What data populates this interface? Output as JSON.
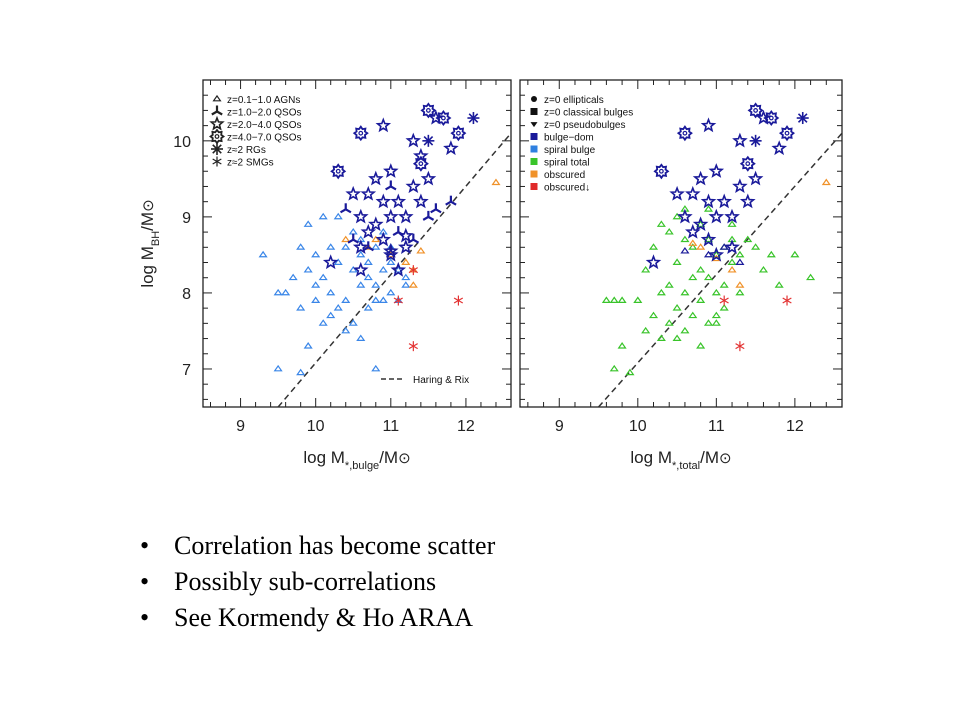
{
  "bullets": [
    "Correlation has become scatter",
    "Possibly sub-correlations",
    "See Kormendy & Ho ARAA"
  ],
  "chart_data": [
    {
      "type": "scatter",
      "xlabel": {
        "pre": "log M",
        "sub": "*,bulge",
        "post": "/M",
        "sun": "⊙"
      },
      "ylabel": {
        "pre": "log M",
        "sub": "BH",
        "post": "/M",
        "sun": "⊙"
      },
      "xlim": [
        8.5,
        12.6
      ],
      "ylim": [
        6.5,
        10.8
      ],
      "xticks": [
        "9",
        "10",
        "11",
        "12"
      ],
      "yticks": [
        "7",
        "8",
        "9",
        "10"
      ],
      "legend_position": "top-left",
      "legend": [
        {
          "label": "z=0.1−1.0 AGNs",
          "marker": "triangle-open",
          "color": "#222222"
        },
        {
          "label": "z=1.0−2.0 QSOs",
          "marker": "tri-star",
          "color": "#222222"
        },
        {
          "label": "z=2.0−4.0 QSOs",
          "marker": "star-open",
          "color": "#222222"
        },
        {
          "label": "z=4.0−7.0 QSOs",
          "marker": "gear-open",
          "color": "#222222"
        },
        {
          "label": "z≈2 RGs",
          "marker": "asterisk",
          "color": "#222222"
        },
        {
          "label": "z≈2 SMGs",
          "marker": "star-thin",
          "color": "#222222"
        }
      ],
      "line_label": "Haring & Rix",
      "reference_line": {
        "x": [
          9.5,
          12.6
        ],
        "y": [
          6.5,
          10.1
        ]
      },
      "series": [
        {
          "marker": "triangle-open",
          "color": "#3a86e8",
          "x": [
            9.3,
            9.5,
            9.6,
            9.7,
            9.8,
            9.9,
            9.9,
            10.0,
            10.0,
            10.1,
            10.1,
            10.2,
            10.2,
            10.3,
            10.3,
            10.4,
            10.4,
            10.5,
            10.5,
            10.6,
            10.6,
            10.7,
            10.7,
            10.8,
            10.8,
            10.9,
            10.9,
            11.0,
            11.0,
            11.1,
            11.1,
            11.2,
            9.8,
            9.9,
            10.0,
            10.2,
            10.4,
            10.5,
            10.6,
            10.7,
            10.8,
            10.9,
            11.0,
            11.2,
            10.3,
            10.6,
            10.8,
            9.5,
            9.8,
            10.1
          ],
          "y": [
            8.5,
            8.0,
            8.0,
            8.2,
            7.8,
            8.3,
            7.3,
            8.5,
            7.9,
            8.2,
            7.6,
            8.6,
            8.0,
            8.4,
            7.8,
            8.6,
            7.9,
            8.3,
            7.6,
            8.7,
            8.1,
            8.4,
            7.8,
            8.6,
            8.1,
            8.3,
            7.9,
            8.6,
            8.0,
            8.3,
            7.9,
            8.2,
            8.6,
            8.9,
            8.1,
            7.7,
            7.5,
            8.8,
            8.5,
            8.2,
            7.9,
            8.8,
            8.4,
            8.1,
            9.0,
            7.4,
            7.0,
            7.0,
            6.95,
            9.0
          ]
        },
        {
          "marker": "triangle-open",
          "color": "#f0922a",
          "x": [
            10.4,
            10.7,
            10.8,
            11.0,
            11.2,
            11.3,
            11.3,
            11.4,
            12.4
          ],
          "y": [
            8.7,
            8.6,
            8.7,
            8.5,
            8.4,
            8.3,
            8.1,
            8.55,
            9.45
          ]
        },
        {
          "marker": "star-thin",
          "color": "#e33333",
          "x": [
            11.1,
            11.3,
            11.9,
            11.3
          ],
          "y": [
            7.9,
            8.3,
            7.9,
            7.3
          ]
        },
        {
          "marker": "star-open",
          "color": "#1a1a9a",
          "x": [
            10.5,
            10.6,
            10.7,
            10.8,
            10.8,
            10.9,
            11.0,
            11.0,
            11.1,
            11.2,
            11.3,
            11.4,
            11.5,
            10.6,
            10.7,
            10.9,
            11.0,
            11.1,
            11.2,
            11.4,
            10.2,
            10.6,
            10.9,
            11.3,
            11.6,
            11.8,
            11.2,
            11.0
          ],
          "y": [
            9.3,
            9.0,
            9.3,
            8.9,
            9.5,
            9.2,
            9.0,
            9.6,
            9.2,
            9.0,
            9.4,
            9.2,
            9.5,
            8.6,
            8.8,
            8.7,
            8.5,
            8.3,
            8.6,
            9.8,
            8.4,
            8.3,
            10.2,
            10.0,
            10.3,
            9.9,
            8.75,
            8.55
          ]
        },
        {
          "marker": "gear-open",
          "color": "#1a1a9a",
          "x": [
            10.3,
            10.6,
            11.5,
            11.9,
            11.7,
            11.4
          ],
          "y": [
            9.6,
            10.1,
            10.4,
            10.1,
            10.3,
            9.7
          ]
        },
        {
          "marker": "tri-star",
          "color": "#1a1a9a",
          "x": [
            10.4,
            10.5,
            10.7,
            11.0,
            11.1,
            11.3,
            11.5,
            11.6,
            11.8
          ],
          "y": [
            9.1,
            8.7,
            8.6,
            9.4,
            8.8,
            8.7,
            9.0,
            9.1,
            9.2
          ]
        },
        {
          "marker": "asterisk",
          "color": "#1a1a9a",
          "x": [
            11.5,
            12.1
          ],
          "y": [
            10.0,
            10.3
          ]
        }
      ]
    },
    {
      "type": "scatter",
      "xlabel": {
        "pre": "log M",
        "sub": "*,total",
        "post": "/M",
        "sun": "⊙"
      },
      "ylabel": {
        "pre": "",
        "sub": "",
        "post": "",
        "sun": ""
      },
      "xlim": [
        8.5,
        12.6
      ],
      "ylim": [
        6.5,
        10.8
      ],
      "xticks": [
        "9",
        "10",
        "11",
        "12"
      ],
      "yticks": [],
      "legend_position": "top-left",
      "legend": [
        {
          "label": "z=0 ellipticals",
          "marker": "circle-filled",
          "color": "#111111"
        },
        {
          "label": "z=0 classical bulges",
          "marker": "square-filled",
          "color": "#111111"
        },
        {
          "label": "z=0 pseudobulges",
          "marker": "tri-down-filled",
          "color": "#111111"
        },
        {
          "label": "bulge−dom",
          "marker": "square-filled",
          "color": "#1a1a9a"
        },
        {
          "label": "spiral bulge",
          "marker": "square-filled",
          "color": "#2f80e0"
        },
        {
          "label": "spiral total",
          "marker": "square-filled",
          "color": "#39c42a"
        },
        {
          "label": "obscured",
          "marker": "square-filled",
          "color": "#f0922a"
        },
        {
          "label": "obscured↓",
          "marker": "square-filled",
          "color": "#e02a2a"
        }
      ],
      "reference_line": {
        "x": [
          9.5,
          12.6
        ],
        "y": [
          6.5,
          10.1
        ]
      },
      "series": [
        {
          "marker": "triangle-open",
          "color": "#39c42a",
          "x": [
            9.6,
            9.7,
            9.8,
            9.9,
            10.0,
            10.1,
            10.1,
            10.2,
            10.2,
            10.3,
            10.3,
            10.4,
            10.4,
            10.4,
            10.5,
            10.5,
            10.5,
            10.6,
            10.6,
            10.6,
            10.7,
            10.7,
            10.7,
            10.8,
            10.8,
            10.8,
            10.9,
            10.9,
            10.9,
            11.0,
            11.0,
            11.0,
            11.1,
            11.1,
            11.1,
            11.2,
            11.2,
            11.3,
            11.3,
            11.4,
            11.5,
            11.6,
            11.7,
            11.8,
            12.0,
            12.2,
            10.3,
            10.6,
            10.9,
            11.2,
            10.5,
            10.8,
            11.0,
            9.7,
            9.8
          ],
          "y": [
            7.9,
            7.0,
            7.3,
            6.95,
            7.9,
            7.5,
            8.3,
            7.7,
            8.6,
            8.0,
            7.4,
            8.8,
            8.1,
            7.6,
            8.4,
            7.8,
            9.0,
            8.7,
            8.0,
            7.5,
            8.6,
            8.2,
            7.7,
            8.9,
            8.3,
            7.9,
            8.7,
            8.2,
            7.6,
            8.5,
            8.0,
            7.7,
            8.6,
            8.1,
            7.8,
            8.7,
            8.4,
            8.5,
            8.0,
            8.7,
            8.6,
            8.3,
            8.5,
            8.1,
            8.5,
            8.2,
            8.9,
            9.1,
            9.1,
            8.9,
            7.4,
            7.3,
            7.6,
            7.9,
            7.9
          ]
        },
        {
          "marker": "triangle-open",
          "color": "#1a1a9a",
          "x": [
            10.6,
            10.9,
            11.1,
            11.3
          ],
          "y": [
            8.55,
            8.5,
            8.6,
            8.4
          ]
        },
        {
          "marker": "triangle-open",
          "color": "#f0922a",
          "x": [
            10.7,
            10.8,
            11.0,
            11.2,
            11.3,
            12.4
          ],
          "y": [
            8.65,
            8.6,
            8.45,
            8.3,
            8.1,
            9.45
          ]
        },
        {
          "marker": "star-thin",
          "color": "#e33333",
          "x": [
            11.1,
            11.9,
            11.3
          ],
          "y": [
            7.9,
            7.9,
            7.3
          ]
        },
        {
          "marker": "star-open",
          "color": "#1a1a9a",
          "x": [
            10.5,
            10.6,
            10.7,
            10.8,
            10.8,
            10.9,
            11.0,
            11.0,
            11.1,
            11.2,
            11.3,
            11.4,
            11.5,
            10.7,
            10.9,
            11.0,
            11.2,
            10.2,
            10.9,
            11.3,
            11.6,
            11.8
          ],
          "y": [
            9.3,
            9.0,
            9.3,
            8.9,
            9.5,
            9.2,
            9.0,
            9.6,
            9.2,
            9.0,
            9.4,
            9.2,
            9.5,
            8.8,
            8.7,
            8.5,
            8.6,
            8.4,
            10.2,
            10.0,
            10.3,
            9.9
          ]
        },
        {
          "marker": "gear-open",
          "color": "#1a1a9a",
          "x": [
            10.3,
            10.6,
            11.5,
            11.9,
            11.7,
            11.4
          ],
          "y": [
            9.6,
            10.1,
            10.4,
            10.1,
            10.3,
            9.7
          ]
        },
        {
          "marker": "asterisk",
          "color": "#1a1a9a",
          "x": [
            11.5,
            12.1
          ],
          "y": [
            10.0,
            10.3
          ]
        }
      ]
    }
  ]
}
